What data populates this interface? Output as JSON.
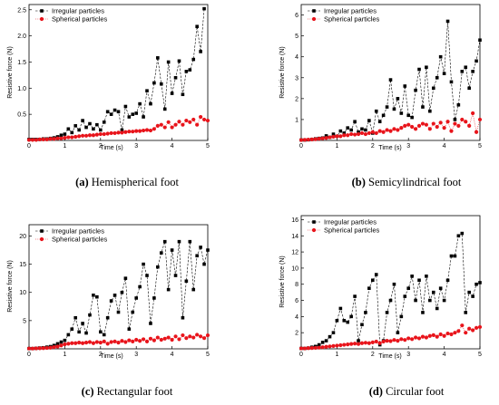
{
  "figure": {
    "legend": [
      "Irregular particles",
      "Spherical particles"
    ],
    "colors": {
      "irregular": "#000000",
      "spherical": "#e8141b"
    }
  },
  "chart_data": [
    {
      "type": "scatter",
      "caption_letter": "(a)",
      "caption_text": " Hemispherical foot",
      "xlabel": "Time (s)",
      "ylabel": "Resistive force (N)",
      "xlim": [
        0,
        5
      ],
      "ylim": [
        0,
        2.6
      ],
      "xticks": [
        0,
        1,
        2,
        3,
        4,
        5
      ],
      "yticks": [
        0.5,
        1.0,
        1.5,
        2.0,
        2.5
      ],
      "ytick_labels": [
        "0.5",
        "1.0",
        "1.5",
        "2.0",
        "2.5"
      ],
      "legend_position": "top-left",
      "series": [
        {
          "name": "Irregular particles",
          "marker": "square",
          "line": "dashed",
          "x": [
            0,
            0.1,
            0.2,
            0.3,
            0.4,
            0.5,
            0.6,
            0.7,
            0.8,
            0.9,
            1.0,
            1.1,
            1.2,
            1.3,
            1.4,
            1.5,
            1.6,
            1.7,
            1.8,
            1.9,
            2.0,
            2.1,
            2.2,
            2.3,
            2.4,
            2.5,
            2.6,
            2.7,
            2.8,
            2.9,
            3.0,
            3.1,
            3.2,
            3.3,
            3.4,
            3.5,
            3.6,
            3.7,
            3.8,
            3.9,
            4.0,
            4.1,
            4.2,
            4.3,
            4.4,
            4.5,
            4.6,
            4.7,
            4.8,
            4.9
          ],
          "y": [
            0.02,
            0.02,
            0.02,
            0.02,
            0.03,
            0.03,
            0.04,
            0.05,
            0.07,
            0.1,
            0.12,
            0.22,
            0.15,
            0.28,
            0.2,
            0.38,
            0.25,
            0.32,
            0.22,
            0.3,
            0.2,
            0.35,
            0.55,
            0.5,
            0.58,
            0.55,
            0.2,
            0.65,
            0.45,
            0.5,
            0.52,
            0.7,
            0.45,
            0.95,
            0.7,
            1.1,
            1.58,
            1.08,
            0.6,
            1.5,
            0.9,
            1.2,
            1.52,
            0.88,
            1.32,
            1.35,
            1.55,
            2.18,
            1.7,
            2.52
          ]
        },
        {
          "name": "Spherical particles",
          "marker": "circle",
          "line": "dotted",
          "x": [
            0,
            0.1,
            0.2,
            0.3,
            0.4,
            0.5,
            0.6,
            0.7,
            0.8,
            0.9,
            1.0,
            1.1,
            1.2,
            1.3,
            1.4,
            1.5,
            1.6,
            1.7,
            1.8,
            1.9,
            2.0,
            2.1,
            2.2,
            2.3,
            2.4,
            2.5,
            2.6,
            2.7,
            2.8,
            2.9,
            3.0,
            3.1,
            3.2,
            3.3,
            3.4,
            3.5,
            3.6,
            3.7,
            3.8,
            3.9,
            4.0,
            4.1,
            4.2,
            4.3,
            4.4,
            4.5,
            4.6,
            4.7,
            4.8,
            4.9,
            5.0
          ],
          "y": [
            0.01,
            0.01,
            0.01,
            0.02,
            0.02,
            0.02,
            0.03,
            0.03,
            0.04,
            0.04,
            0.05,
            0.06,
            0.06,
            0.07,
            0.08,
            0.09,
            0.09,
            0.1,
            0.1,
            0.11,
            0.12,
            0.12,
            0.13,
            0.14,
            0.14,
            0.15,
            0.15,
            0.16,
            0.17,
            0.17,
            0.18,
            0.18,
            0.19,
            0.2,
            0.19,
            0.22,
            0.28,
            0.3,
            0.25,
            0.35,
            0.25,
            0.3,
            0.36,
            0.3,
            0.38,
            0.35,
            0.4,
            0.3,
            0.45,
            0.4,
            0.38
          ]
        }
      ]
    },
    {
      "type": "scatter",
      "caption_letter": "(b)",
      "caption_text": " Semicylindrical foot",
      "xlabel": "Time (s)",
      "ylabel": "Resistive force (N)",
      "xlim": [
        0,
        5
      ],
      "ylim": [
        0,
        6.5
      ],
      "xticks": [
        0,
        1,
        2,
        3,
        4,
        5
      ],
      "yticks": [
        1,
        2,
        3,
        4,
        5,
        6
      ],
      "ytick_labels": [
        "1",
        "2",
        "3",
        "4",
        "5",
        "6"
      ],
      "legend_position": "top-left",
      "series": [
        {
          "name": "Irregular particles",
          "marker": "square",
          "line": "dashed",
          "x": [
            0,
            0.1,
            0.2,
            0.3,
            0.4,
            0.5,
            0.6,
            0.7,
            0.8,
            0.9,
            1.0,
            1.1,
            1.2,
            1.3,
            1.4,
            1.5,
            1.6,
            1.7,
            1.8,
            1.9,
            2.0,
            2.1,
            2.2,
            2.3,
            2.4,
            2.5,
            2.6,
            2.7,
            2.8,
            2.9,
            3.0,
            3.1,
            3.2,
            3.3,
            3.4,
            3.5,
            3.6,
            3.7,
            3.8,
            3.9,
            4.0,
            4.1,
            4.2,
            4.3,
            4.4,
            4.5,
            4.6,
            4.7,
            4.8,
            4.9,
            5.0
          ],
          "y": [
            0.02,
            0.02,
            0.03,
            0.05,
            0.08,
            0.1,
            0.12,
            0.22,
            0.15,
            0.3,
            0.2,
            0.45,
            0.35,
            0.6,
            0.5,
            0.9,
            0.4,
            0.55,
            0.5,
            0.95,
            0.35,
            1.4,
            0.9,
            1.2,
            1.6,
            2.9,
            1.5,
            2.0,
            1.3,
            2.6,
            1.2,
            1.1,
            2.4,
            3.4,
            1.6,
            3.5,
            1.4,
            2.5,
            3.0,
            4.0,
            3.2,
            5.7,
            2.8,
            1.0,
            1.7,
            3.3,
            3.5,
            2.5,
            3.3,
            3.8,
            4.8
          ]
        },
        {
          "name": "Spherical particles",
          "marker": "circle",
          "line": "dotted",
          "x": [
            0,
            0.1,
            0.2,
            0.3,
            0.4,
            0.5,
            0.6,
            0.7,
            0.8,
            0.9,
            1.0,
            1.1,
            1.2,
            1.3,
            1.4,
            1.5,
            1.6,
            1.7,
            1.8,
            1.9,
            2.0,
            2.1,
            2.2,
            2.3,
            2.4,
            2.5,
            2.6,
            2.7,
            2.8,
            2.9,
            3.0,
            3.1,
            3.2,
            3.3,
            3.4,
            3.5,
            3.6,
            3.7,
            3.8,
            3.9,
            4.0,
            4.1,
            4.2,
            4.3,
            4.4,
            4.5,
            4.6,
            4.7,
            4.8,
            4.9,
            5.0
          ],
          "y": [
            0.02,
            0.03,
            0.04,
            0.05,
            0.06,
            0.08,
            0.1,
            0.12,
            0.15,
            0.18,
            0.2,
            0.2,
            0.25,
            0.25,
            0.3,
            0.28,
            0.3,
            0.35,
            0.3,
            0.35,
            0.4,
            0.35,
            0.45,
            0.4,
            0.5,
            0.45,
            0.55,
            0.5,
            0.6,
            0.7,
            0.75,
            0.65,
            0.55,
            0.7,
            0.8,
            0.75,
            0.55,
            0.8,
            0.65,
            0.85,
            0.6,
            0.9,
            0.45,
            0.8,
            0.7,
            1.0,
            0.9,
            0.7,
            1.3,
            0.4,
            1.0
          ]
        }
      ]
    },
    {
      "type": "scatter",
      "caption_letter": "(c)",
      "caption_text": " Rectangular foot",
      "xlabel": "Time (s)",
      "ylabel": "Resistive force (N)",
      "xlim": [
        0,
        5
      ],
      "ylim": [
        0,
        22
      ],
      "xticks": [
        0,
        1,
        2,
        3,
        4,
        5
      ],
      "yticks": [
        5,
        10,
        15,
        20
      ],
      "ytick_labels": [
        "5",
        "10",
        "15",
        "20"
      ],
      "legend_position": "top-left",
      "series": [
        {
          "name": "Irregular particles",
          "marker": "square",
          "line": "dashed",
          "x": [
            0,
            0.1,
            0.2,
            0.3,
            0.4,
            0.5,
            0.6,
            0.7,
            0.8,
            0.9,
            1.0,
            1.1,
            1.2,
            1.3,
            1.4,
            1.5,
            1.6,
            1.7,
            1.8,
            1.9,
            2.0,
            2.1,
            2.2,
            2.3,
            2.4,
            2.5,
            2.6,
            2.7,
            2.8,
            2.9,
            3.0,
            3.1,
            3.2,
            3.3,
            3.4,
            3.5,
            3.6,
            3.7,
            3.8,
            3.9,
            4.0,
            4.1,
            4.2,
            4.3,
            4.4,
            4.5,
            4.6,
            4.7,
            4.8,
            4.9,
            5.0
          ],
          "y": [
            0.05,
            0.05,
            0.1,
            0.15,
            0.2,
            0.3,
            0.4,
            0.6,
            0.9,
            1.2,
            1.5,
            2.5,
            3.5,
            5.5,
            3.0,
            4.5,
            2.8,
            6.0,
            9.5,
            9.2,
            3.0,
            2.5,
            5.5,
            8.5,
            9.5,
            6.5,
            10.0,
            12.5,
            3.5,
            6.5,
            9.0,
            11.0,
            15.0,
            13.0,
            4.5,
            9.0,
            14.5,
            17.0,
            19.0,
            10.5,
            17.5,
            13.0,
            19.0,
            5.5,
            12.0,
            19.0,
            10.5,
            16.5,
            18.0,
            15.0,
            17.5
          ]
        },
        {
          "name": "Spherical particles",
          "marker": "circle",
          "line": "dotted",
          "x": [
            0,
            0.1,
            0.2,
            0.3,
            0.4,
            0.5,
            0.6,
            0.7,
            0.8,
            0.9,
            1.0,
            1.1,
            1.2,
            1.3,
            1.4,
            1.5,
            1.6,
            1.7,
            1.8,
            1.9,
            2.0,
            2.1,
            2.2,
            2.3,
            2.4,
            2.5,
            2.6,
            2.7,
            2.8,
            2.9,
            3.0,
            3.1,
            3.2,
            3.3,
            3.4,
            3.5,
            3.6,
            3.7,
            3.8,
            3.9,
            4.0,
            4.1,
            4.2,
            4.3,
            4.4,
            4.5,
            4.6,
            4.7,
            4.8,
            4.9,
            5.0
          ],
          "y": [
            0.05,
            0.05,
            0.08,
            0.1,
            0.12,
            0.15,
            0.2,
            0.3,
            0.4,
            0.6,
            0.8,
            0.9,
            1.0,
            1.0,
            1.1,
            1.0,
            1.1,
            1.2,
            1.0,
            1.2,
            1.1,
            1.3,
            0.9,
            1.2,
            1.3,
            1.1,
            1.4,
            1.2,
            1.5,
            1.3,
            1.6,
            1.4,
            1.7,
            1.3,
            1.8,
            1.5,
            2.0,
            1.6,
            1.8,
            2.0,
            1.6,
            2.2,
            1.7,
            2.4,
            1.9,
            2.2,
            2.0,
            2.5,
            2.2,
            1.9,
            2.4
          ]
        }
      ]
    },
    {
      "type": "scatter",
      "caption_letter": "(d)",
      "caption_text": " Circular foot",
      "xlabel": "Time (s)",
      "ylabel": "Resistive force (N)",
      "xlim": [
        0,
        5
      ],
      "ylim": [
        0,
        16.5
      ],
      "xticks": [
        0,
        1,
        2,
        3,
        4,
        5
      ],
      "yticks": [
        2,
        4,
        6,
        8,
        10,
        12,
        14,
        16
      ],
      "ytick_labels": [
        "2",
        "4",
        "6",
        "8",
        "10",
        "12",
        "14",
        "16"
      ],
      "legend_position": "top-left",
      "series": [
        {
          "name": "Irregular particles",
          "marker": "square",
          "line": "dashed",
          "x": [
            0,
            0.1,
            0.2,
            0.3,
            0.4,
            0.5,
            0.6,
            0.7,
            0.8,
            0.9,
            1.0,
            1.1,
            1.2,
            1.3,
            1.4,
            1.5,
            1.6,
            1.7,
            1.8,
            1.9,
            2.0,
            2.1,
            2.2,
            2.3,
            2.4,
            2.5,
            2.6,
            2.7,
            2.8,
            2.9,
            3.0,
            3.1,
            3.2,
            3.3,
            3.4,
            3.5,
            3.6,
            3.7,
            3.8,
            3.9,
            4.0,
            4.1,
            4.2,
            4.3,
            4.4,
            4.5,
            4.6,
            4.7,
            4.8,
            4.9,
            5.0
          ],
          "y": [
            0.05,
            0.05,
            0.1,
            0.2,
            0.3,
            0.5,
            0.8,
            1.0,
            1.5,
            2.0,
            3.5,
            5.0,
            3.5,
            3.3,
            4.0,
            6.5,
            1.0,
            3.0,
            4.5,
            7.5,
            8.5,
            9.2,
            0.5,
            1.0,
            4.5,
            6.0,
            8.0,
            2.0,
            4.0,
            6.5,
            7.5,
            9.0,
            6.0,
            8.5,
            4.5,
            9.0,
            6.0,
            7.0,
            5.0,
            7.5,
            6.0,
            8.5,
            11.5,
            11.5,
            14.0,
            14.3,
            4.5,
            7.0,
            6.5,
            8.0,
            8.2
          ]
        },
        {
          "name": "Spherical particles",
          "marker": "circle",
          "line": "dotted",
          "x": [
            0,
            0.1,
            0.2,
            0.3,
            0.4,
            0.5,
            0.6,
            0.7,
            0.8,
            0.9,
            1.0,
            1.1,
            1.2,
            1.3,
            1.4,
            1.5,
            1.6,
            1.7,
            1.8,
            1.9,
            2.0,
            2.1,
            2.2,
            2.3,
            2.4,
            2.5,
            2.6,
            2.7,
            2.8,
            2.9,
            3.0,
            3.1,
            3.2,
            3.3,
            3.4,
            3.5,
            3.6,
            3.7,
            3.8,
            3.9,
            4.0,
            4.1,
            4.2,
            4.3,
            4.4,
            4.5,
            4.6,
            4.7,
            4.8,
            4.9,
            5.0
          ],
          "y": [
            0.05,
            0.05,
            0.08,
            0.1,
            0.12,
            0.15,
            0.2,
            0.25,
            0.3,
            0.35,
            0.4,
            0.45,
            0.5,
            0.55,
            0.6,
            0.65,
            0.6,
            0.7,
            0.75,
            0.7,
            0.8,
            0.9,
            0.7,
            0.9,
            1.0,
            0.95,
            1.1,
            1.0,
            1.2,
            1.1,
            1.3,
            1.2,
            1.4,
            1.3,
            1.5,
            1.4,
            1.6,
            1.7,
            1.5,
            1.8,
            1.6,
            1.9,
            1.8,
            2.0,
            2.2,
            2.9,
            2.0,
            2.5,
            2.3,
            2.6,
            2.7
          ]
        }
      ]
    }
  ]
}
